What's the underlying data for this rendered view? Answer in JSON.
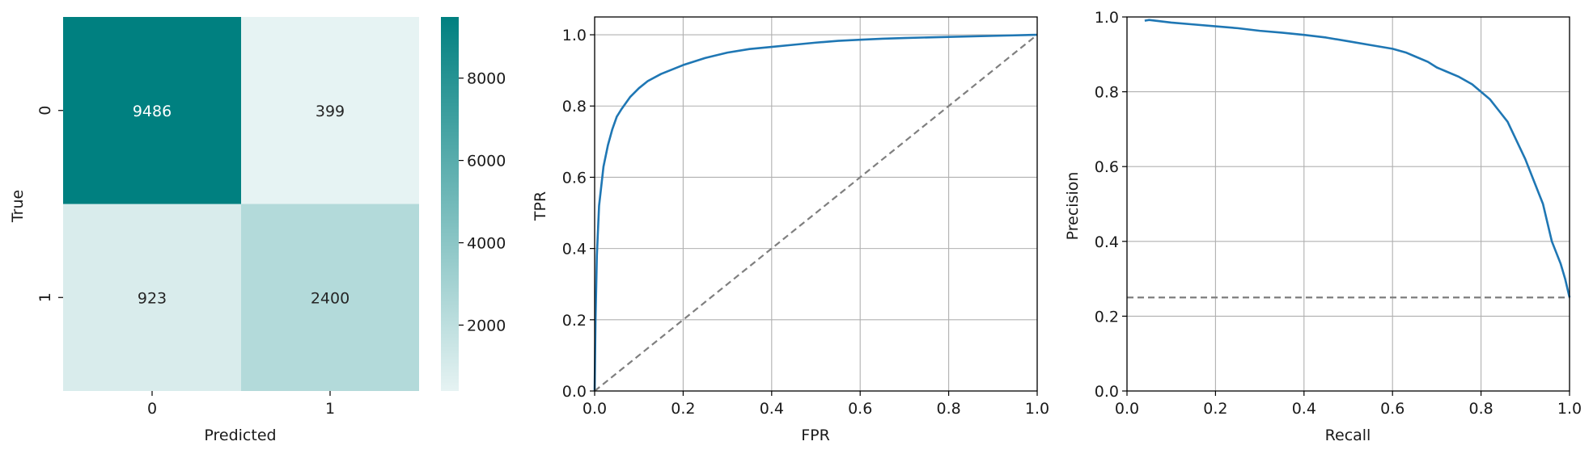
{
  "chart_data": [
    {
      "type": "heatmap",
      "xlabel": "Predicted",
      "ylabel": "True",
      "x_categories": [
        "0",
        "1"
      ],
      "y_categories": [
        "0",
        "1"
      ],
      "values": [
        [
          9486,
          399
        ],
        [
          923,
          2400
        ]
      ],
      "colorbar": {
        "ticks": [
          2000,
          4000,
          6000,
          8000
        ],
        "range": [
          399,
          9486
        ]
      },
      "colormap": [
        "#e6f3f3",
        "#008080"
      ],
      "text_colors": {
        "dark_cell": "#ffffff",
        "light_cell": "#262626"
      }
    },
    {
      "type": "line",
      "xlabel": "FPR",
      "ylabel": "TPR",
      "xlim": [
        0,
        1
      ],
      "ylim": [
        0,
        1.05
      ],
      "xticks": [
        0.0,
        0.2,
        0.4,
        0.6,
        0.8,
        1.0
      ],
      "yticks": [
        0.0,
        0.2,
        0.4,
        0.6,
        0.8,
        1.0
      ],
      "grid": true,
      "series": [
        {
          "style": "solid",
          "color": "#1f77b4",
          "x": [
            0,
            0.002,
            0.005,
            0.01,
            0.02,
            0.03,
            0.04,
            0.05,
            0.06,
            0.08,
            0.1,
            0.12,
            0.15,
            0.2,
            0.25,
            0.3,
            0.35,
            0.4,
            0.45,
            0.5,
            0.55,
            0.6,
            0.65,
            0.7,
            0.8,
            0.9,
            1.0
          ],
          "y": [
            0,
            0.2,
            0.38,
            0.52,
            0.63,
            0.69,
            0.735,
            0.77,
            0.79,
            0.825,
            0.85,
            0.87,
            0.89,
            0.915,
            0.935,
            0.95,
            0.96,
            0.966,
            0.972,
            0.978,
            0.983,
            0.986,
            0.989,
            0.991,
            0.994,
            0.997,
            1.0
          ]
        },
        {
          "style": "dashed",
          "color": "#7f7f7f",
          "x": [
            0,
            1
          ],
          "y": [
            0,
            1
          ]
        }
      ]
    },
    {
      "type": "line",
      "xlabel": "Recall",
      "ylabel": "Precision",
      "xlim": [
        0,
        1
      ],
      "ylim": [
        0,
        1
      ],
      "xticks": [
        0.0,
        0.2,
        0.4,
        0.6,
        0.8,
        1.0
      ],
      "yticks": [
        0.0,
        0.2,
        0.4,
        0.6,
        0.8,
        1.0
      ],
      "grid": true,
      "series": [
        {
          "style": "solid",
          "color": "#1f77b4",
          "x": [
            0.04,
            0.05,
            0.1,
            0.15,
            0.2,
            0.25,
            0.3,
            0.35,
            0.4,
            0.45,
            0.5,
            0.55,
            0.6,
            0.63,
            0.65,
            0.68,
            0.7,
            0.72,
            0.75,
            0.78,
            0.8,
            0.82,
            0.84,
            0.86,
            0.88,
            0.9,
            0.92,
            0.94,
            0.95,
            0.96,
            0.97,
            0.98,
            0.99,
            1.0
          ],
          "y": [
            0.99,
            0.992,
            0.985,
            0.98,
            0.975,
            0.97,
            0.963,
            0.958,
            0.952,
            0.945,
            0.935,
            0.925,
            0.915,
            0.905,
            0.895,
            0.88,
            0.865,
            0.855,
            0.84,
            0.82,
            0.8,
            0.78,
            0.75,
            0.72,
            0.67,
            0.62,
            0.56,
            0.5,
            0.45,
            0.4,
            0.37,
            0.34,
            0.3,
            0.25
          ]
        },
        {
          "style": "dashed",
          "color": "#7f7f7f",
          "x": [
            0,
            1
          ],
          "y": [
            0.25,
            0.25
          ]
        }
      ]
    }
  ]
}
